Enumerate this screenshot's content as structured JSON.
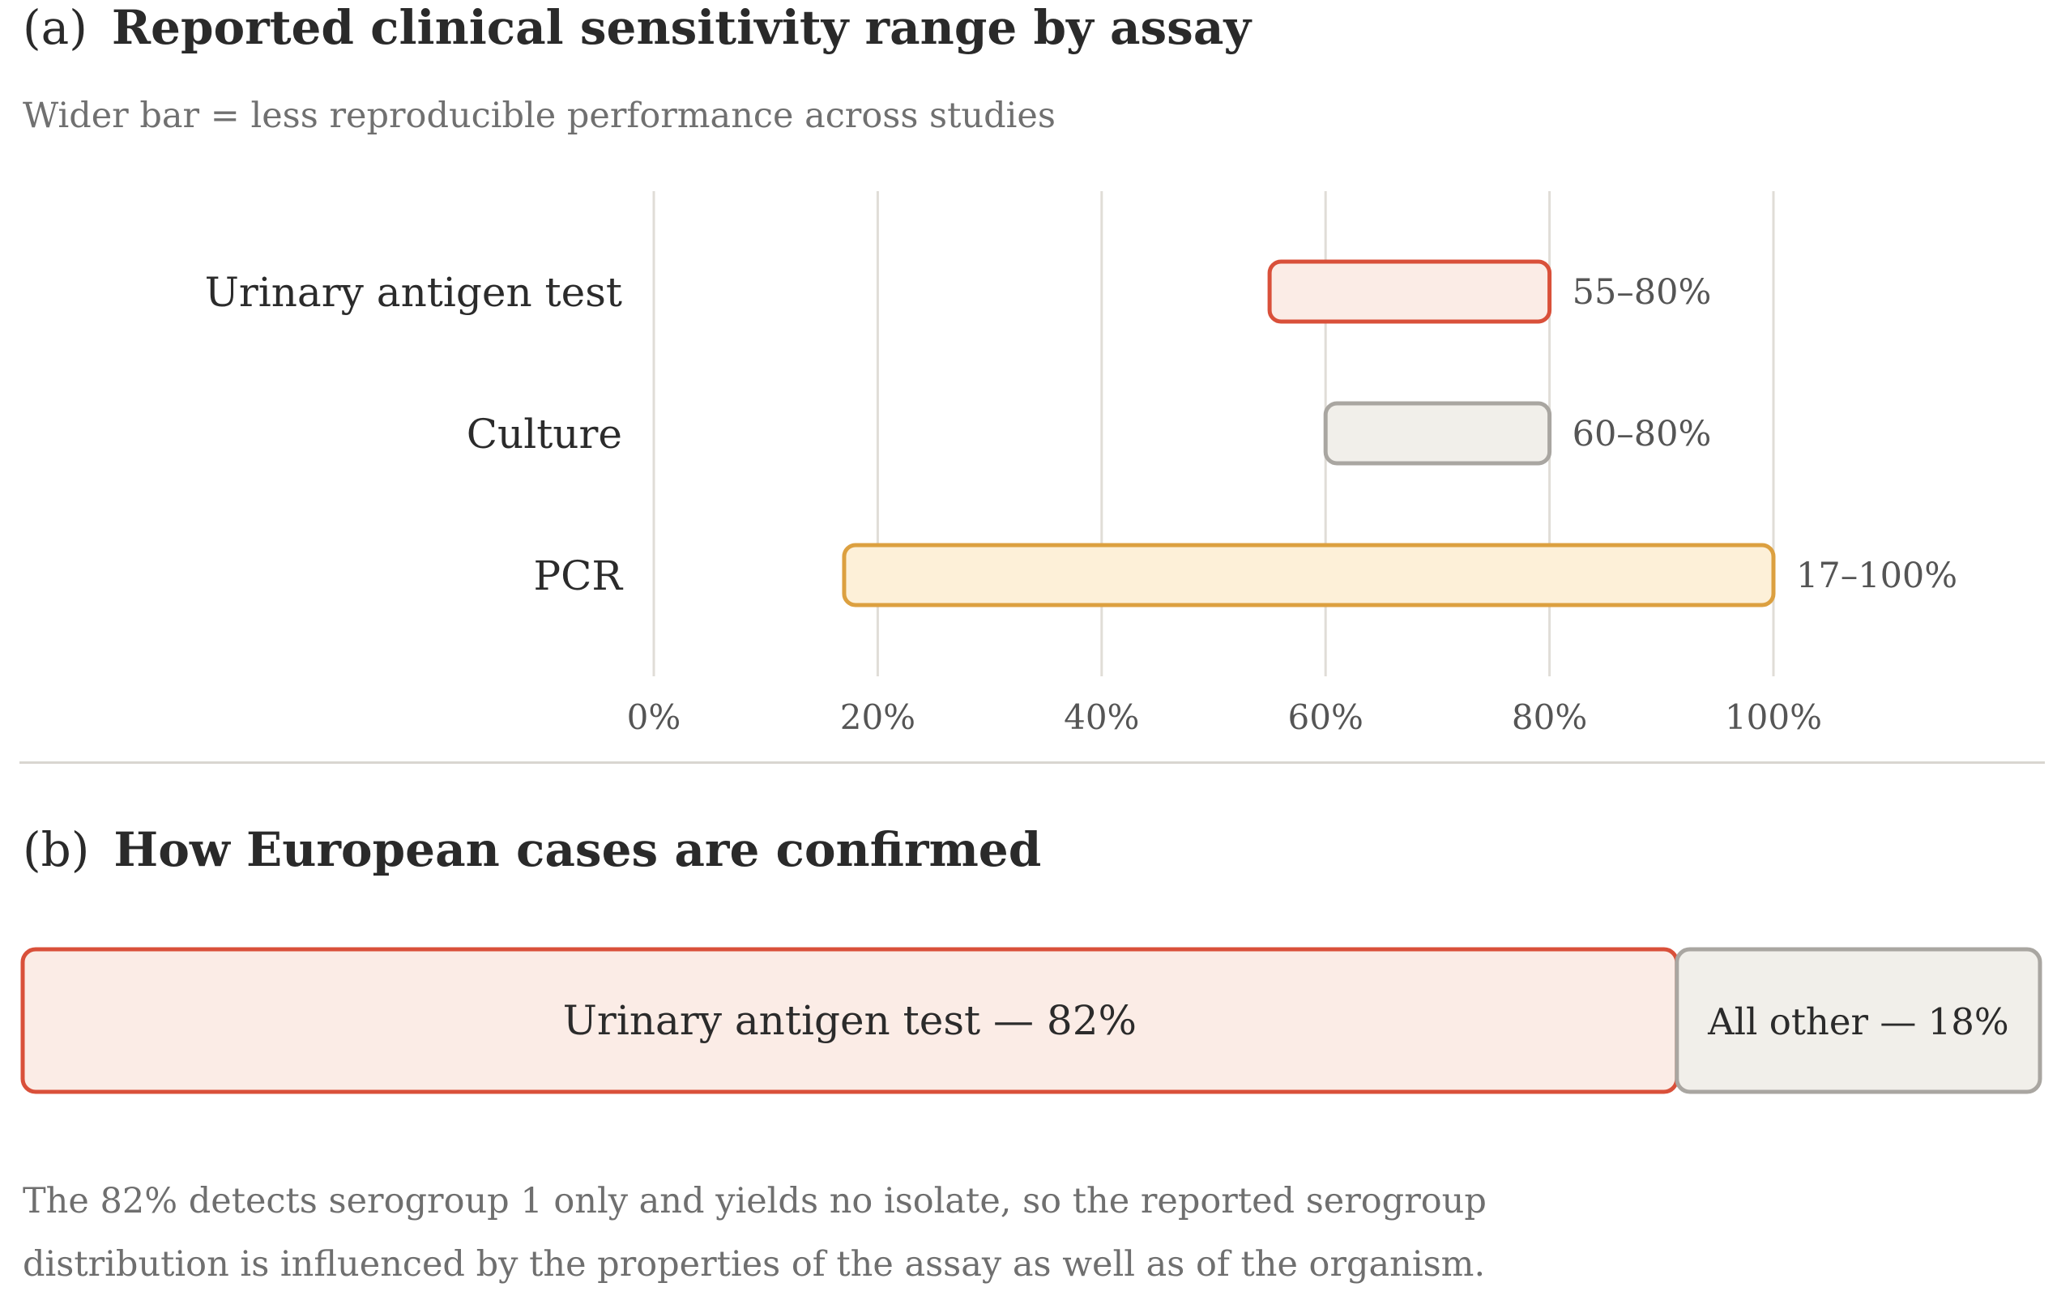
{
  "panel_a": {
    "tag": "(a)",
    "title": "Reported clinical sensitivity range by assay",
    "subtitle": "Wider bar = less reproducible performance across studies"
  },
  "panel_b": {
    "tag": "(b)",
    "title": "How European cases are confirmed"
  },
  "footnote": {
    "line1": "The 82% detects serogroup 1 only and yields no isolate, so the reported serogroup",
    "line2": "distribution is influenced by the properties of the assay as well as of the organism."
  },
  "colors": {
    "urinary_fill": "#fbece6",
    "urinary_stroke": "#d9503a",
    "culture_fill": "#f1efea",
    "culture_stroke": "#a9a6a1",
    "pcr_fill": "#fdf0d8",
    "pcr_stroke": "#dca040",
    "grid": "#e0ddd7"
  },
  "chart_data": [
    {
      "type": "range-bar",
      "title": "Reported clinical sensitivity range by assay",
      "subtitle": "Wider bar = less reproducible performance across studies",
      "xlim": [
        0,
        100
      ],
      "x_ticks": [
        0,
        20,
        40,
        60,
        80,
        100
      ],
      "x_tick_labels": [
        "0%",
        "20%",
        "40%",
        "60%",
        "80%",
        "100%"
      ],
      "grid": true,
      "series": [
        {
          "name": "Urinary antigen test",
          "low": 55,
          "high": 80,
          "label": "55–80%",
          "color_key": "urinary"
        },
        {
          "name": "Culture",
          "low": 60,
          "high": 80,
          "label": "60–80%",
          "color_key": "culture"
        },
        {
          "name": "PCR",
          "low": 17,
          "high": 100,
          "label": "17–100%",
          "color_key": "pcr"
        }
      ]
    },
    {
      "type": "stacked-bar",
      "title": "How European cases are confirmed",
      "segments": [
        {
          "name": "Urinary antigen test",
          "value": 82,
          "label": "Urinary antigen test — 82%",
          "color_key": "urinary"
        },
        {
          "name": "All other",
          "value": 18,
          "label": "All other — 18%",
          "color_key": "culture"
        }
      ]
    }
  ]
}
